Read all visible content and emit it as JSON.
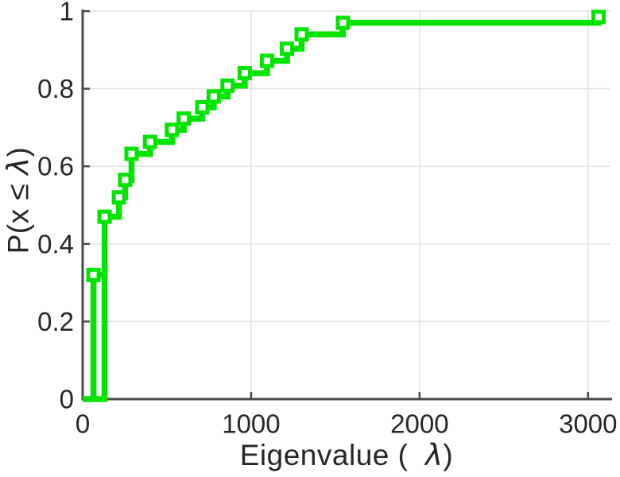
{
  "figure": {
    "background": "#ffffff"
  },
  "chart_data": {
    "type": "line",
    "subtype": "ecdf-stairs",
    "title": "",
    "xlabel": "Eigenvalue (  λ)",
    "ylabel": "P(x ≤ λ)",
    "xlim": [
      0,
      3133
    ],
    "ylim": [
      0,
      1
    ],
    "xticks": [
      0,
      1000,
      2000,
      3000
    ],
    "xtick_labels": [
      "0",
      "1000",
      "2000",
      "3000"
    ],
    "yticks": [
      0,
      0.2,
      0.4,
      0.6,
      0.8,
      1
    ],
    "ytick_labels": [
      "0",
      "0.2",
      "0.4",
      "0.6",
      "0.8",
      "1"
    ],
    "grid": true,
    "legend_position": "none",
    "colors": {
      "line": "#00e400",
      "marker_face": "#ffffff",
      "axis": "#4a4a4a",
      "text": "#262626",
      "grid": "#e2e2e2",
      "background": "#ffffff"
    },
    "series": [
      {
        "name": "ecdf-main",
        "vertices": [
          [
            0,
            0
          ],
          [
            130,
            0
          ],
          [
            130,
            0.47
          ],
          [
            215,
            0.47
          ],
          [
            215,
            0.52
          ],
          [
            252,
            0.52
          ],
          [
            252,
            0.565
          ],
          [
            290,
            0.565
          ],
          [
            290,
            0.632
          ],
          [
            400,
            0.632
          ],
          [
            400,
            0.663
          ],
          [
            530,
            0.663
          ],
          [
            530,
            0.694
          ],
          [
            600,
            0.694
          ],
          [
            600,
            0.723
          ],
          [
            710,
            0.723
          ],
          [
            710,
            0.752
          ],
          [
            778,
            0.752
          ],
          [
            778,
            0.78
          ],
          [
            860,
            0.78
          ],
          [
            860,
            0.808
          ],
          [
            962,
            0.808
          ],
          [
            962,
            0.84
          ],
          [
            1094,
            0.84
          ],
          [
            1094,
            0.872
          ],
          [
            1213,
            0.872
          ],
          [
            1213,
            0.903
          ],
          [
            1300,
            0.903
          ],
          [
            1300,
            0.94
          ],
          [
            1545,
            0.94
          ],
          [
            1545,
            0.97
          ],
          [
            3062,
            0.97
          ],
          [
            3062,
            0.985
          ]
        ]
      },
      {
        "name": "ecdf-first-jump",
        "vertices": [
          [
            64,
            0
          ],
          [
            64,
            0.32
          ],
          [
            130,
            0.32
          ]
        ]
      }
    ],
    "marker_points": [
      [
        64,
        0.32
      ],
      [
        130,
        0.47
      ],
      [
        215,
        0.52
      ],
      [
        252,
        0.565
      ],
      [
        290,
        0.632
      ],
      [
        400,
        0.663
      ],
      [
        530,
        0.694
      ],
      [
        600,
        0.723
      ],
      [
        710,
        0.752
      ],
      [
        778,
        0.78
      ],
      [
        860,
        0.808
      ],
      [
        962,
        0.84
      ],
      [
        1094,
        0.872
      ],
      [
        1213,
        0.903
      ],
      [
        1300,
        0.94
      ],
      [
        1545,
        0.97
      ],
      [
        3062,
        0.985
      ]
    ]
  }
}
